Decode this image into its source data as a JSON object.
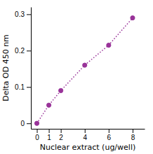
{
  "chart_data": {
    "type": "line",
    "xlabel": "Nuclear extract (ug/well)",
    "ylabel": "Delta OD 450 nm",
    "x": [
      0,
      1,
      2,
      4,
      6,
      8
    ],
    "values": [
      0.0,
      0.05,
      0.09,
      0.16,
      0.215,
      0.29
    ],
    "color": "#993399",
    "marker": "circle",
    "line_style": "dotted",
    "xlim": [
      -0.5,
      9.0
    ],
    "ylim": [
      -0.015,
      0.32
    ],
    "xticks": [
      0,
      1,
      2,
      4,
      6,
      8
    ],
    "yticks": [
      0,
      0.1,
      0.2,
      0.3
    ]
  }
}
